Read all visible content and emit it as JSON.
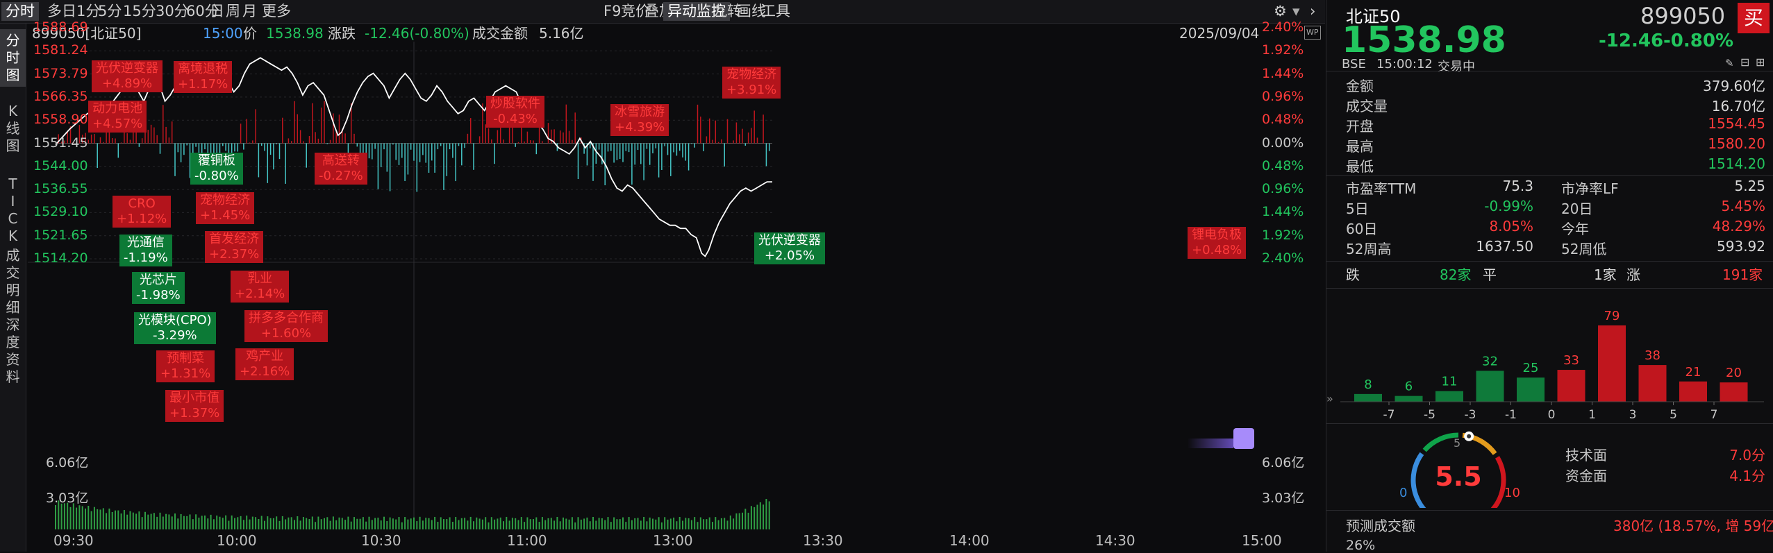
{
  "toolbar": {
    "left_items": [
      "分时",
      "多日",
      "1分",
      "5分",
      "15分",
      "30分",
      "60分",
      "日",
      "周",
      "月",
      "更多"
    ],
    "right_items": [
      "F9",
      "竞价",
      "叠加",
      "异动监控",
      "九转",
      "画线",
      "工具"
    ],
    "active_left": 0,
    "active_right": 3
  },
  "left_tabs": [
    {
      "label": "分时图",
      "chars": [
        "分",
        "时",
        "图"
      ]
    },
    {
      "label": "K线图",
      "chars": [
        "K",
        "线",
        "图"
      ]
    },
    {
      "label": "TICK",
      "chars": [
        "T",
        "I",
        "C",
        "K"
      ]
    },
    {
      "label": "成交明细",
      "chars": [
        "成",
        "交",
        "明",
        "细"
      ]
    },
    {
      "label": "深度资料",
      "chars": [
        "深",
        "度",
        "资",
        "料"
      ]
    }
  ],
  "info": {
    "code": "899050[北证50]",
    "time": "15:00",
    "price_label": "价",
    "price": "1538.98",
    "change_label": "涨跌",
    "change": "-12.46(-0.80%)",
    "turnover_label": "成交金额",
    "turnover": "5.16亿",
    "date": "2025/09/04",
    "wp_badge": "WP"
  },
  "chart_data": {
    "type": "line",
    "x_ticks": [
      "09:30",
      "10:00",
      "10:30",
      "11:00",
      "13:00",
      "13:30",
      "14:00",
      "14:30",
      "15:00"
    ],
    "y_left_ticks": [
      "1588.69",
      "1581.24",
      "1573.79",
      "1566.35",
      "1558.90",
      "1551.45",
      "1544.00",
      "1536.55",
      "1529.10",
      "1521.65",
      "1514.20"
    ],
    "y_right_ticks": [
      "2.40%",
      "1.92%",
      "1.44%",
      "0.96%",
      "0.48%",
      "0.00%",
      "0.48%",
      "0.96%",
      "1.44%",
      "1.92%",
      "2.40%"
    ],
    "ylim": [
      1514.2,
      1588.69
    ],
    "pre_close": 1551.45,
    "volume_ticks": [
      "6.06亿",
      "3.03亿"
    ],
    "price_series": [
      [
        0,
        1551
      ],
      [
        8,
        1556
      ],
      [
        14,
        1559
      ],
      [
        18,
        1561
      ],
      [
        22,
        1562
      ],
      [
        26,
        1560
      ],
      [
        30,
        1563
      ],
      [
        34,
        1566
      ],
      [
        38,
        1569
      ],
      [
        41,
        1572
      ],
      [
        44,
        1571
      ],
      [
        47,
        1568
      ],
      [
        50,
        1565
      ],
      [
        53,
        1569
      ],
      [
        56,
        1572
      ],
      [
        59,
        1570
      ],
      [
        62,
        1565
      ],
      [
        65,
        1567
      ],
      [
        68,
        1570
      ],
      [
        71,
        1573
      ],
      [
        74,
        1576
      ],
      [
        77,
        1574
      ],
      [
        80,
        1575
      ],
      [
        83,
        1573
      ],
      [
        86,
        1574
      ],
      [
        89,
        1575
      ],
      [
        92,
        1574
      ],
      [
        95,
        1573
      ],
      [
        98,
        1571
      ],
      [
        101,
        1568
      ],
      [
        104,
        1570
      ],
      [
        107,
        1574
      ],
      [
        110,
        1577
      ],
      [
        113,
        1578
      ],
      [
        116,
        1579
      ],
      [
        119,
        1578
      ],
      [
        122,
        1577
      ],
      [
        125,
        1576
      ],
      [
        128,
        1575
      ],
      [
        131,
        1576
      ],
      [
        134,
        1574
      ],
      [
        137,
        1571
      ],
      [
        140,
        1567
      ],
      [
        143,
        1570
      ],
      [
        146,
        1571
      ],
      [
        149,
        1569
      ],
      [
        152,
        1567
      ],
      [
        155,
        1562
      ],
      [
        158,
        1557
      ],
      [
        160,
        1554
      ],
      [
        162,
        1555
      ],
      [
        165,
        1559
      ],
      [
        168,
        1564
      ],
      [
        171,
        1568
      ],
      [
        174,
        1571
      ],
      [
        177,
        1573
      ],
      [
        180,
        1574
      ],
      [
        183,
        1572
      ],
      [
        186,
        1570
      ],
      [
        189,
        1566
      ],
      [
        192,
        1569
      ],
      [
        195,
        1572
      ],
      [
        198,
        1574
      ],
      [
        201,
        1572
      ],
      [
        204,
        1569
      ],
      [
        207,
        1566
      ],
      [
        210,
        1565
      ],
      [
        213,
        1567
      ],
      [
        216,
        1570
      ],
      [
        219,
        1568
      ],
      [
        222,
        1565
      ],
      [
        225,
        1563
      ],
      [
        228,
        1561
      ],
      [
        231,
        1562
      ],
      [
        234,
        1565
      ],
      [
        237,
        1566
      ],
      [
        240,
        1564
      ],
      [
        243,
        1562
      ],
      [
        246,
        1565
      ],
      [
        249,
        1568
      ],
      [
        252,
        1569
      ],
      [
        255,
        1570
      ],
      [
        258,
        1569
      ],
      [
        261,
        1568
      ],
      [
        264,
        1564
      ],
      [
        267,
        1561
      ],
      [
        270,
        1559
      ],
      [
        273,
        1558
      ],
      [
        276,
        1556
      ],
      [
        279,
        1553
      ],
      [
        282,
        1552
      ],
      [
        285,
        1550
      ],
      [
        288,
        1549
      ],
      [
        291,
        1548
      ],
      [
        294,
        1550
      ],
      [
        297,
        1553
      ],
      [
        300,
        1550
      ],
      [
        303,
        1552
      ],
      [
        306,
        1549
      ],
      [
        309,
        1547
      ],
      [
        312,
        1544
      ],
      [
        315,
        1540
      ],
      [
        318,
        1537
      ],
      [
        321,
        1536
      ],
      [
        324,
        1538
      ],
      [
        327,
        1537
      ],
      [
        330,
        1535
      ],
      [
        333,
        1533
      ],
      [
        336,
        1531
      ],
      [
        339,
        1529
      ],
      [
        342,
        1527
      ],
      [
        345,
        1526
      ],
      [
        348,
        1525
      ],
      [
        351,
        1525
      ],
      [
        354,
        1524
      ],
      [
        357,
        1524
      ],
      [
        360,
        1522
      ],
      [
        363,
        1521
      ],
      [
        366,
        1516
      ],
      [
        368,
        1515
      ],
      [
        370,
        1517
      ],
      [
        373,
        1522
      ],
      [
        376,
        1526
      ],
      [
        379,
        1529
      ],
      [
        382,
        1532
      ],
      [
        385,
        1534
      ],
      [
        388,
        1536
      ],
      [
        391,
        1537
      ],
      [
        394,
        1536
      ],
      [
        397,
        1537
      ],
      [
        400,
        1538
      ],
      [
        403,
        1539
      ],
      [
        406,
        1539
      ]
    ],
    "volume_bar_count": 240
  },
  "annotations": [
    {
      "name": "光伏逆变器",
      "pct": "+4.89%",
      "color": "red"
    },
    {
      "name": "离境退税",
      "pct": "+1.17%",
      "color": "red"
    },
    {
      "name": "动力电池",
      "pct": "+4.57%",
      "color": "red"
    },
    {
      "name": "覆铜板",
      "pct": "-0.80%",
      "color": "green"
    },
    {
      "name": "CRO",
      "pct": "+1.12%",
      "color": "red"
    },
    {
      "name": "宠物经济",
      "pct": "+1.45%",
      "color": "red"
    },
    {
      "name": "光通信",
      "pct": "-1.19%",
      "color": "green"
    },
    {
      "name": "首发经济",
      "pct": "+2.37%",
      "color": "red"
    },
    {
      "name": "光芯片",
      "pct": "-1.98%",
      "color": "green"
    },
    {
      "name": "乳业",
      "pct": "+2.14%",
      "color": "red"
    },
    {
      "name": "光模块(CPO)",
      "pct": "-3.29%",
      "color": "green"
    },
    {
      "name": "拼多多合作商",
      "pct": "+1.60%",
      "color": "red"
    },
    {
      "name": "预制菜",
      "pct": "+1.31%",
      "color": "red"
    },
    {
      "name": "鸡产业",
      "pct": "+2.16%",
      "color": "red"
    },
    {
      "name": "最小市值",
      "pct": "+1.37%",
      "color": "red"
    },
    {
      "name": "高送转",
      "pct": "-0.27%",
      "color": "red"
    },
    {
      "name": "炒股软件",
      "pct": "-0.43%",
      "color": "red"
    },
    {
      "name": "冰雪旅游",
      "pct": "+4.39%",
      "color": "red"
    },
    {
      "name": "宠物经济",
      "pct": "+3.91%",
      "color": "red"
    },
    {
      "name": "光伏逆变器",
      "pct": "+2.05%",
      "color": "green"
    },
    {
      "name": "锂电负极",
      "pct": "+0.48%",
      "color": "red"
    }
  ],
  "panel": {
    "name": "北证50",
    "code": "899050",
    "buy_label": "买",
    "price": "1538.98",
    "change": "-12.46",
    "change_pct": "-0.80%",
    "exchange": "BSE",
    "timestamp": "15:00:12",
    "status": "交易中",
    "rows": [
      {
        "label": "金额",
        "value": "379.60亿",
        "color": "white"
      },
      {
        "label": "成交量",
        "value": "16.70亿",
        "color": "white"
      },
      {
        "label": "开盘",
        "value": "1554.45",
        "color": "red"
      },
      {
        "label": "最高",
        "value": "1580.20",
        "color": "red"
      },
      {
        "label": "最低",
        "value": "1514.20",
        "color": "green"
      }
    ],
    "grid": [
      {
        "l_label": "市盈率TTM",
        "l_value": "75.3",
        "l_color": "white",
        "r_label": "市净率LF",
        "r_value": "5.25",
        "r_color": "white"
      },
      {
        "l_label": "5日",
        "l_value": "-0.99%",
        "l_color": "green",
        "r_label": "20日",
        "r_value": "5.45%",
        "r_color": "red"
      },
      {
        "l_label": "60日",
        "l_value": "8.05%",
        "l_color": "red",
        "r_label": "今年",
        "r_value": "48.29%",
        "r_color": "red"
      },
      {
        "l_label": "52周高",
        "l_value": "1637.50",
        "l_color": "white",
        "r_label": "52周低",
        "r_value": "593.92",
        "r_color": "white"
      }
    ],
    "breadth": {
      "down_label": "跌",
      "down_value": "82家",
      "flat_label": "平",
      "flat_value": "1家",
      "up_label": "涨",
      "up_value": "191家"
    },
    "distribution": {
      "type": "bar",
      "values": [
        8,
        6,
        11,
        32,
        25,
        33,
        79,
        38,
        21,
        20
      ],
      "colors": [
        "green",
        "green",
        "green",
        "green",
        "green",
        "red",
        "red",
        "red",
        "red",
        "red"
      ],
      "x_ticks": [
        "-7",
        "-5",
        "-3",
        "-1",
        "0",
        "1",
        "3",
        "5",
        "7"
      ]
    },
    "gauge": {
      "score": "5.5",
      "min": "0",
      "mid": "5",
      "max": "10",
      "value": 5.5
    },
    "scores": [
      {
        "label": "技术面",
        "value": "7.0分"
      },
      {
        "label": "资金面",
        "value": "4.1分"
      }
    ],
    "forecast_label": "预测成交额",
    "forecast_value": "380亿 (18.57%, 增 59亿)",
    "bottom_partial": "26%"
  },
  "colors": {
    "up": "#e53935",
    "down": "#2e7d32",
    "up_text": "#ff3b3b",
    "down_text": "#22c55e",
    "line": "#ffffff",
    "volume_bar": "#2f9e44"
  }
}
